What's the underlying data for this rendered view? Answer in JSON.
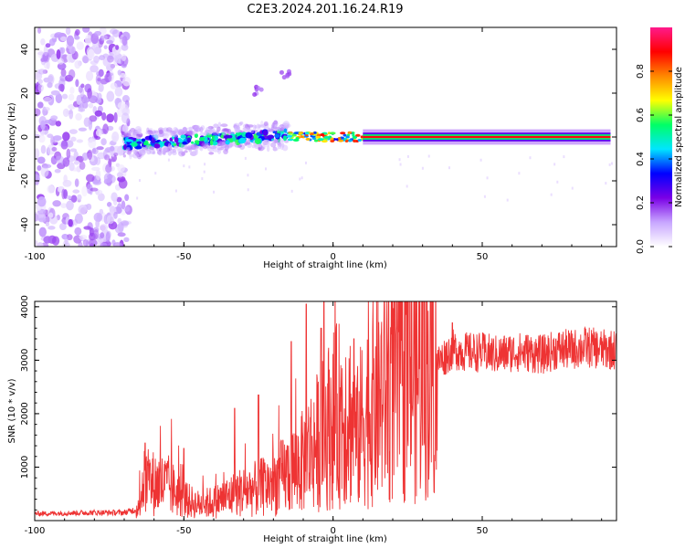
{
  "title": "C2E3.2024.201.16.24.R19",
  "colors": {
    "spectrum_low": "#7a00e6",
    "snr_line": "#ee3333"
  },
  "chart_data": [
    {
      "type": "heatmap",
      "title": "C2E3.2024.201.16.24.R19",
      "xlabel": "Height of straight line (km)",
      "ylabel": "Frequency (Hz)",
      "xlim": [
        -100,
        95
      ],
      "ylim": [
        -50,
        50
      ],
      "xticks": [
        -100,
        -50,
        0,
        50
      ],
      "yticks": [
        -40,
        -20,
        0,
        20,
        40
      ],
      "grid": false,
      "colorbar": {
        "label": "Normalized spectral amplitude",
        "range": [
          0,
          1
        ],
        "ticks": [
          "0.0",
          "0.2",
          "0.4",
          "0.6",
          "0.8"
        ],
        "colormap": [
          "#ffffff",
          "#c8a6ff",
          "#7a00e6",
          "#0000ff",
          "#00e5ff",
          "#00ff66",
          "#ffff00",
          "#ff8800",
          "#ff0000",
          "#ff1a8c"
        ]
      },
      "regions": [
        {
          "name": "broadband noise",
          "x_range": [
            -100,
            -70
          ],
          "freq_range": [
            -50,
            50
          ],
          "amplitude": 0.05
        },
        {
          "name": "echo band",
          "x_range": [
            -70,
            -15
          ],
          "freq_center_start": -3,
          "freq_center_end": 1,
          "amplitude": 0.25
        },
        {
          "name": "sidelobe",
          "points": [
            {
              "x": -25,
              "f": 21
            },
            {
              "x": -16,
              "f": 28
            }
          ],
          "amplitude": 0.05
        },
        {
          "name": "steady line",
          "x_range": [
            10,
            93
          ],
          "freq": 0,
          "amplitude": 0.9
        }
      ]
    },
    {
      "type": "line",
      "xlabel": "Height of straight line (km)",
      "ylabel": "SNR (10 * v/v)",
      "xlim": [
        -100,
        95
      ],
      "ylim": [
        0,
        4100
      ],
      "xticks": [
        -100,
        -50,
        0,
        50
      ],
      "yticks": [
        1000,
        2000,
        3000,
        4000
      ],
      "grid": false,
      "series": [
        {
          "x": [
            -100,
            -90,
            -80,
            -70,
            -65,
            -64,
            -60,
            -55,
            -50,
            -45,
            -40,
            -35,
            -30,
            -25,
            -20,
            -15,
            -10,
            -8,
            -5,
            0,
            5,
            8,
            10,
            15,
            20,
            25,
            30,
            35,
            40,
            45,
            50,
            55,
            60,
            65,
            70,
            75,
            80,
            85,
            90,
            95
          ],
          "values": [
            130,
            140,
            150,
            150,
            220,
            700,
            700,
            650,
            400,
            300,
            350,
            450,
            550,
            600,
            700,
            900,
            1100,
            1300,
            1500,
            1900,
            2100,
            1500,
            1900,
            2300,
            2550,
            2750,
            2850,
            2950,
            3200,
            3150,
            3150,
            3100,
            3150,
            3150,
            3100,
            3200,
            3200,
            3250,
            3200,
            3200
          ],
          "spikes": [
            {
              "x": -63,
              "value": 1450
            },
            {
              "x": -50,
              "value": 1350
            },
            {
              "x": -33,
              "value": 2100
            },
            {
              "x": -25,
              "value": 2350
            },
            {
              "x": -14,
              "value": 3350
            },
            {
              "x": -9,
              "value": 4050
            },
            {
              "x": -4,
              "value": 3600
            },
            {
              "x": 7,
              "value": 3400
            },
            {
              "x": 40,
              "value": 3700
            }
          ]
        }
      ]
    }
  ]
}
